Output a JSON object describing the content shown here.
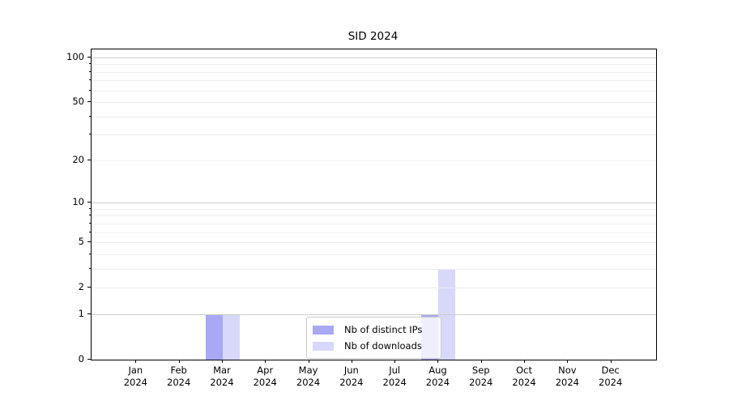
{
  "chart_data": {
    "type": "bar",
    "title": "SID 2024",
    "categories": [
      {
        "month": "Jan",
        "year": "2024"
      },
      {
        "month": "Feb",
        "year": "2024"
      },
      {
        "month": "Mar",
        "year": "2024"
      },
      {
        "month": "Apr",
        "year": "2024"
      },
      {
        "month": "May",
        "year": "2024"
      },
      {
        "month": "Jun",
        "year": "2024"
      },
      {
        "month": "Jul",
        "year": "2024"
      },
      {
        "month": "Aug",
        "year": "2024"
      },
      {
        "month": "Sep",
        "year": "2024"
      },
      {
        "month": "Oct",
        "year": "2024"
      },
      {
        "month": "Nov",
        "year": "2024"
      },
      {
        "month": "Dec",
        "year": "2024"
      }
    ],
    "series": [
      {
        "name": "Nb of distinct IPs",
        "color": "#a8a8f5",
        "values": [
          0,
          0,
          1,
          0,
          0,
          0,
          0,
          1,
          0,
          0,
          0,
          0
        ]
      },
      {
        "name": "Nb of downloads",
        "color": "#d8d8fa",
        "values": [
          0,
          0,
          1,
          0,
          0,
          0,
          0,
          3,
          0,
          0,
          0,
          0
        ]
      }
    ],
    "xlabel": "",
    "ylabel": "",
    "y_scale": "log1p",
    "y_major_ticks": [
      0,
      1,
      2,
      5,
      10,
      20,
      50,
      100
    ],
    "y_minor_ticks": [
      3,
      4,
      6,
      7,
      8,
      9,
      30,
      40,
      60,
      70,
      80,
      90
    ],
    "y_decade_lines": [
      1,
      10,
      100
    ],
    "ylim": [
      0,
      113
    ],
    "grid": true,
    "legend_position": "lower-center"
  },
  "colors": {
    "grid_major": "#cccccc",
    "grid_minor": "#eeeeee",
    "axis": "#000000",
    "background": "#ffffff"
  }
}
